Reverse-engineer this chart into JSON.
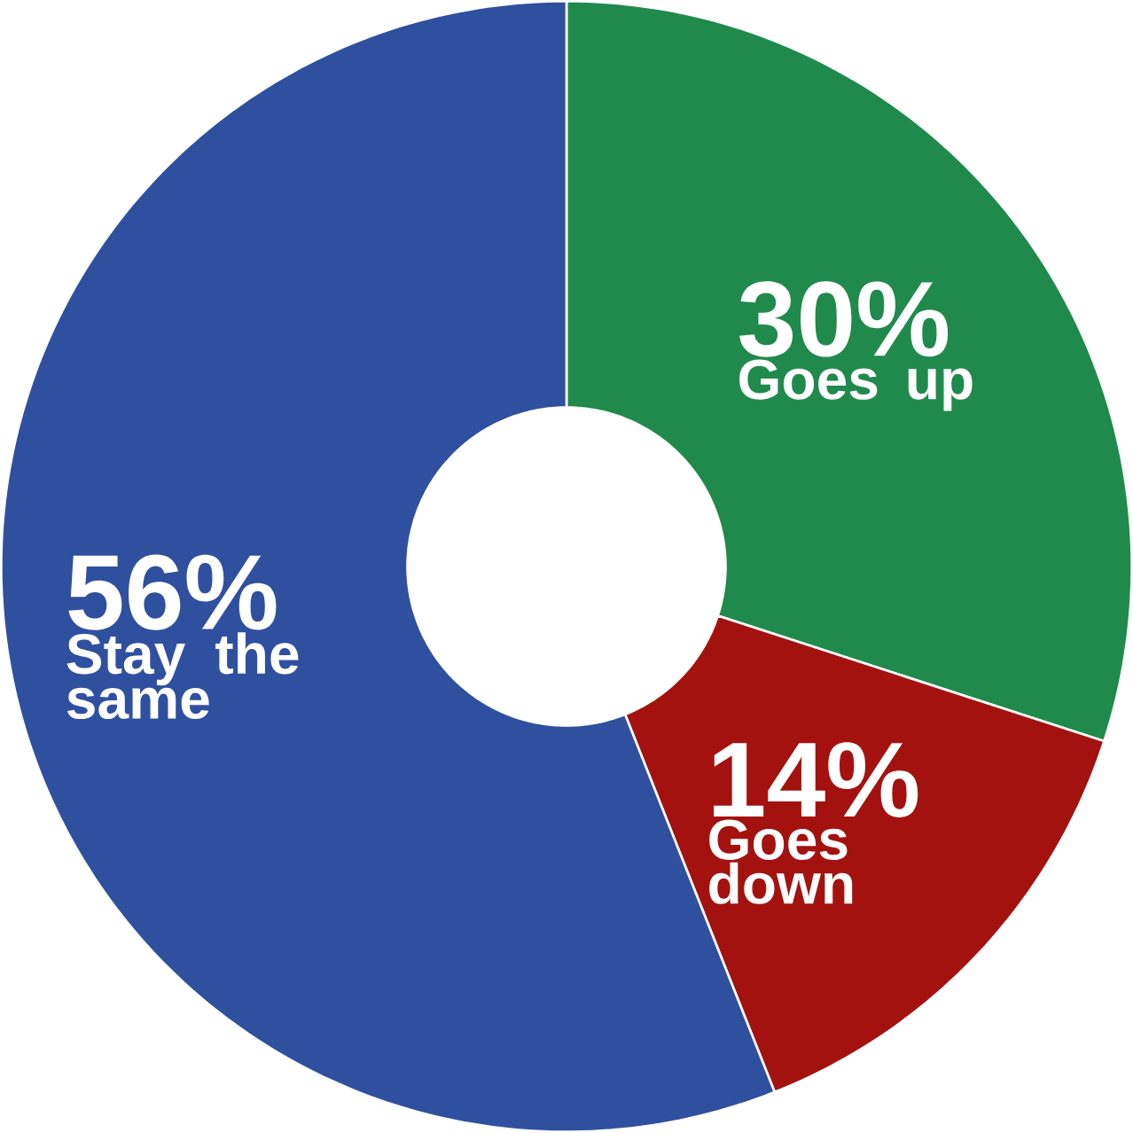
{
  "chart_data": {
    "type": "donut",
    "categories": [
      "Goes up",
      "Goes down",
      "Stay the same"
    ],
    "values": [
      30,
      14,
      56
    ],
    "colors": [
      "#1f8a4c",
      "#a3120f",
      "#2f509f"
    ],
    "value_labels": [
      "30%",
      "14%",
      "56%"
    ]
  }
}
